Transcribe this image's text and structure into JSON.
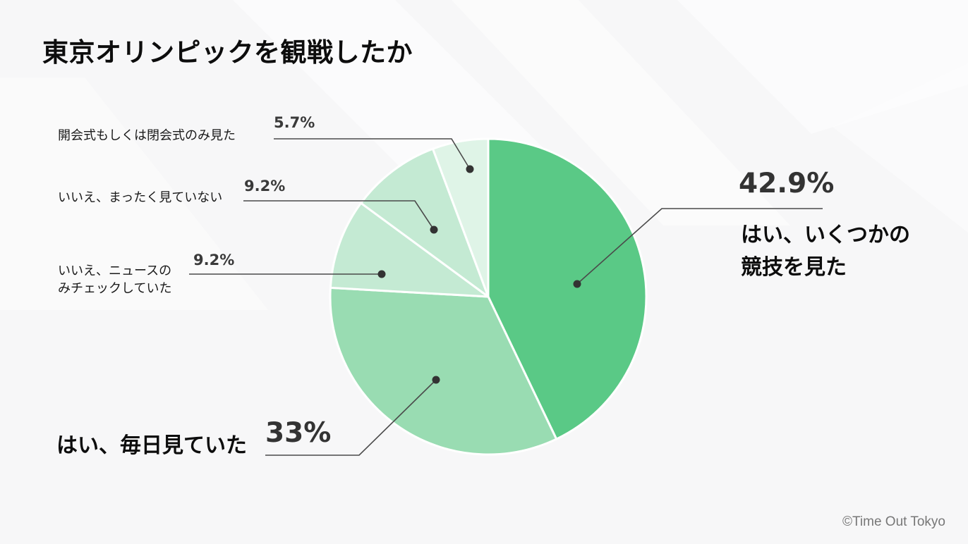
{
  "chart_data": {
    "type": "pie",
    "title": "東京オリンピックを観戦したか",
    "slices": [
      {
        "label": "はい、いくつかの競技を見た",
        "label_lines": [
          "はい、いくつかの",
          "競技を見た"
        ],
        "value": 42.9,
        "value_label": "42.9%",
        "color": "#5ac986"
      },
      {
        "label": "はい、毎日見ていた",
        "label_lines": [
          "はい、毎日見ていた"
        ],
        "value": 33,
        "value_label": "33%",
        "color": "#99dcb2"
      },
      {
        "label": "いいえ、ニュースのみチェックしていた",
        "label_lines": [
          "いいえ、ニュースの",
          "みチェックしていた"
        ],
        "value": 9.2,
        "value_label": "9.2%",
        "color": "#c4ead3"
      },
      {
        "label": "いいえ、まったく見ていない",
        "label_lines": [
          "いいえ、まったく見ていない"
        ],
        "value": 9.2,
        "value_label": "9.2%",
        "color": "#c4ead3"
      },
      {
        "label": "開会式もしくは閉会式のみ見た",
        "label_lines": [
          "開会式もしくは閉会式のみ見た"
        ],
        "value": 5.7,
        "value_label": "5.7%",
        "color": "#dff4e7"
      }
    ],
    "start": "top",
    "direction": "clockwise"
  },
  "footer": {
    "credit": "©Time Out Tokyo"
  }
}
